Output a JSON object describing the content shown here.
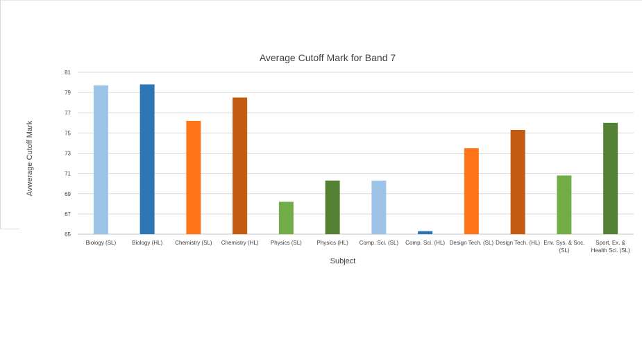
{
  "chart_data": {
    "type": "bar",
    "title": "Average Cutoff Mark for Band 7",
    "xlabel": "Subject",
    "ylabel": "Avwerage Cutoff Mark",
    "ylim": [
      65,
      81
    ],
    "yticks": [
      65,
      67,
      69,
      71,
      73,
      75,
      77,
      79,
      81
    ],
    "grid": true,
    "categories": [
      "Biology (SL)",
      "Biology (HL)",
      "Chemistry (SL)",
      "Chemistry (HL)",
      "Physics (SL)",
      "Physics (HL)",
      "Comp. Sci. (SL)",
      "Comp. Sci. (HL)",
      "Design Tech. (SL)",
      "Design Tech. (HL)",
      "Env. Sys. & Soc. (SL)",
      "Sport, Ex. & Health Sci. (SL)"
    ],
    "category_lines": [
      [
        "Biology (SL)"
      ],
      [
        "Biology (HL)"
      ],
      [
        "Chemistry (SL)"
      ],
      [
        "Chemistry (HL)"
      ],
      [
        "Physics (SL)"
      ],
      [
        "Physics (HL)"
      ],
      [
        "Comp. Sci. (SL)"
      ],
      [
        "Comp. Sci. (HL)"
      ],
      [
        "Design Tech. (SL)"
      ],
      [
        "Design Tech. (HL)"
      ],
      [
        "Env. Sys. & Soc.",
        "(SL)"
      ],
      [
        "Sport, Ex. &",
        "Health Sci. (SL)"
      ]
    ],
    "values": [
      79.7,
      79.8,
      76.2,
      78.5,
      68.2,
      70.3,
      70.3,
      65.3,
      73.5,
      75.3,
      70.8,
      76.0
    ],
    "colors": [
      "#9dc3e6",
      "#2e75b6",
      "#ff7518",
      "#c55a11",
      "#70ad47",
      "#548235",
      "#9dc3e6",
      "#2e75b6",
      "#ff7518",
      "#c55a11",
      "#70ad47",
      "#548235"
    ]
  }
}
